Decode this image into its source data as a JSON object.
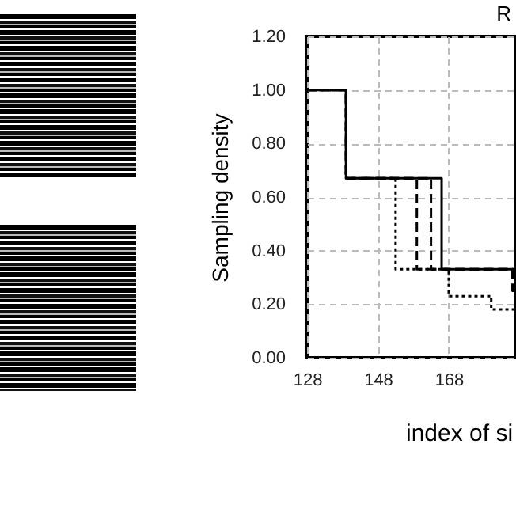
{
  "chart_data": {
    "type": "step",
    "title": "R",
    "xlabel": "index of si",
    "ylabel": "Sampling density",
    "xlim": [
      128,
      187
    ],
    "xticks": [
      128,
      148,
      168
    ],
    "ylim": [
      0,
      1.2
    ],
    "yticks": [
      {
        "value": 0,
        "label": "0.00"
      },
      {
        "value": 0.2,
        "label": "0.20"
      },
      {
        "value": 0.4,
        "label": "0.40"
      },
      {
        "value": 0.6,
        "label": "0.60"
      },
      {
        "value": 0.8,
        "label": "0.80"
      },
      {
        "value": 1,
        "label": "1.00"
      },
      {
        "value": 1.2,
        "label": "1.20"
      }
    ],
    "grid": true,
    "series": [
      {
        "color": "#000000",
        "line_style": "solid",
        "x": [
          128,
          139,
          166,
          187
        ],
        "values": [
          1,
          0.67,
          0.33,
          0.33
        ]
      },
      {
        "color": "#000000",
        "line_style": "dashed",
        "x": [
          128,
          139,
          163,
          187
        ],
        "values": [
          1,
          0.67,
          0.33,
          0.33
        ]
      },
      {
        "color": "#000000",
        "line_style": "dashed",
        "x": [
          128,
          139,
          159,
          186,
          187
        ],
        "values": [
          1,
          0.67,
          0.33,
          0.25,
          0.25
        ]
      },
      {
        "color": "#000000",
        "line_style": "dotted",
        "x": [
          128,
          139,
          153,
          168,
          180,
          187
        ],
        "values": [
          1,
          0.67,
          0.33,
          0.23,
          0.18,
          0.18
        ]
      }
    ]
  }
}
